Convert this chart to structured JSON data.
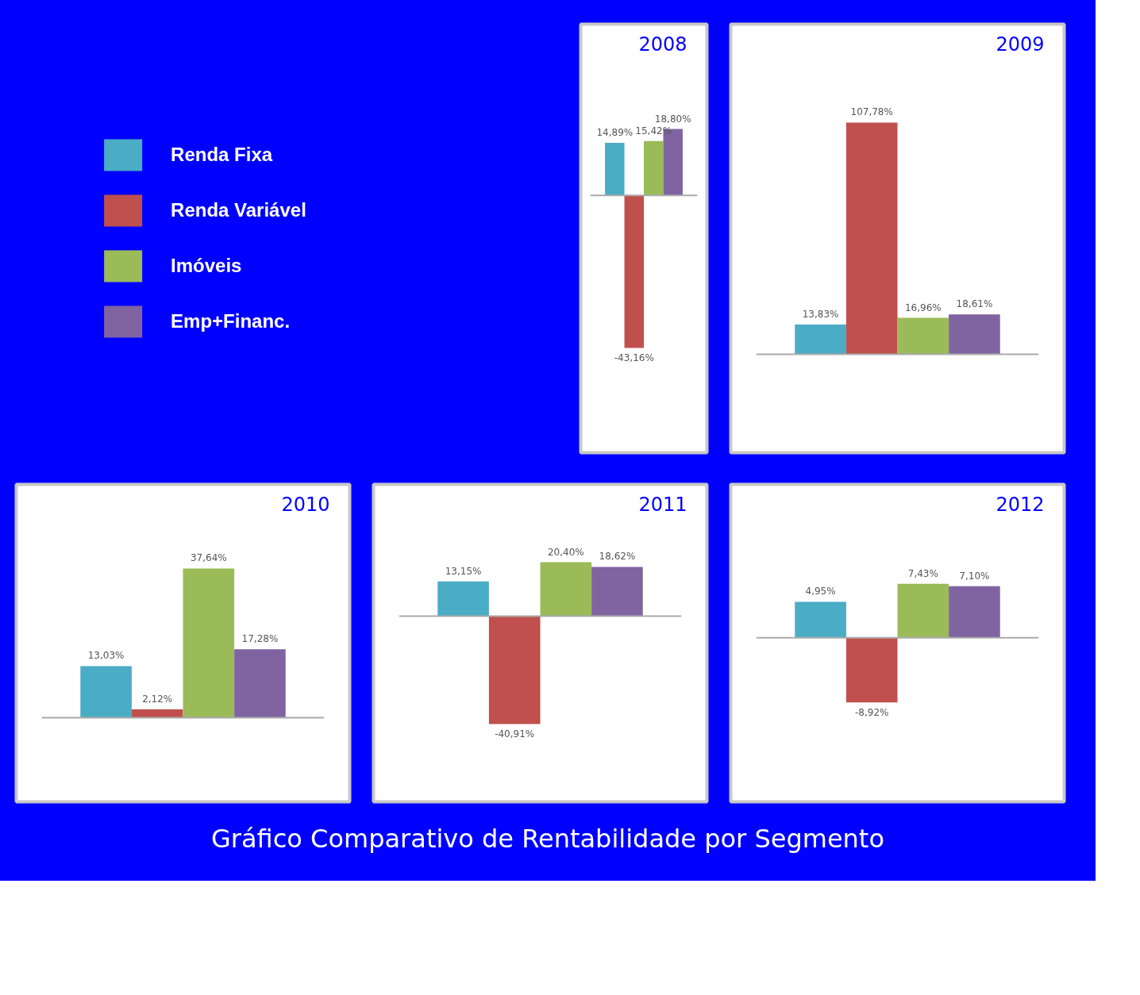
{
  "chart_data": [
    {
      "type": "bar",
      "title": "2008",
      "categories": [
        null
      ],
      "legend": "left",
      "series": [
        {
          "name": "Renda Fixa",
          "color": "#4bacc6",
          "values": [
            14.89
          ],
          "value_labels": [
            "14,89%"
          ]
        },
        {
          "name": "Renda Variável",
          "color": "#c0504d",
          "values": [
            -43.16
          ],
          "value_labels": [
            "-43,16%"
          ]
        },
        {
          "name": "Imóveis",
          "color": "#9bbb59",
          "values": [
            15.42
          ],
          "value_labels": [
            "15,42%"
          ]
        },
        {
          "name": "Emp+Financ.",
          "color": "#8064a2",
          "values": [
            18.8
          ],
          "value_labels": [
            "18,80%"
          ]
        }
      ]
    },
    {
      "type": "bar",
      "title": "2009",
      "categories": [
        null
      ],
      "series": [
        {
          "color": "#4bacc6",
          "values": [
            13.83
          ],
          "value_labels": [
            "13,83%"
          ]
        },
        {
          "color": "#c0504d",
          "values": [
            107.78
          ],
          "value_labels": [
            "107,78%"
          ]
        },
        {
          "color": "#9bbb59",
          "values": [
            16.96
          ],
          "value_labels": [
            "16,96%"
          ]
        },
        {
          "color": "#8064a2",
          "values": [
            18.61
          ],
          "value_labels": [
            "18,61%"
          ]
        }
      ]
    },
    {
      "type": "bar",
      "title": "2010",
      "categories": [
        null
      ],
      "series": [
        {
          "color": "#4bacc6",
          "values": [
            13.03
          ],
          "value_labels": [
            "13,03%"
          ]
        },
        {
          "color": "#c0504d",
          "values": [
            2.12
          ],
          "value_labels": [
            "2,12%"
          ]
        },
        {
          "color": "#9bbb59",
          "values": [
            37.64
          ],
          "value_labels": [
            "37,64%"
          ]
        },
        {
          "color": "#8064a2",
          "values": [
            17.28
          ],
          "value_labels": [
            "17,28%"
          ]
        }
      ]
    },
    {
      "type": "bar",
      "title": "2011",
      "categories": [
        null
      ],
      "series": [
        {
          "color": "#4bacc6",
          "values": [
            13.15
          ],
          "value_labels": [
            "13,15%"
          ]
        },
        {
          "color": "#c0504d",
          "values": [
            -40.91
          ],
          "value_labels": [
            "-40,91%"
          ]
        },
        {
          "color": "#9bbb59",
          "values": [
            20.4
          ],
          "value_labels": [
            "20,40%"
          ]
        },
        {
          "color": "#8064a2",
          "values": [
            18.62
          ],
          "value_labels": [
            "18,62%"
          ]
        }
      ]
    },
    {
      "type": "bar",
      "title": "2012",
      "categories": [
        null
      ],
      "annotations": [
        "Gráfico Comparativo de Rentabilidade por Segmento"
      ],
      "series": [
        {
          "color": "#4bacc6",
          "values": [
            4.95
          ],
          "value_labels": [
            "4,95%"
          ]
        },
        {
          "color": "#c0504d",
          "values": [
            -8.92
          ],
          "value_labels": [
            "-8,92%"
          ]
        },
        {
          "color": "#9bbb59",
          "values": [
            7.43
          ],
          "value_labels": [
            "7,43%"
          ]
        },
        {
          "color": "#8064a2",
          "values": [
            7.1
          ],
          "value_labels": [
            "7,10%"
          ]
        }
      ]
    }
  ]
}
